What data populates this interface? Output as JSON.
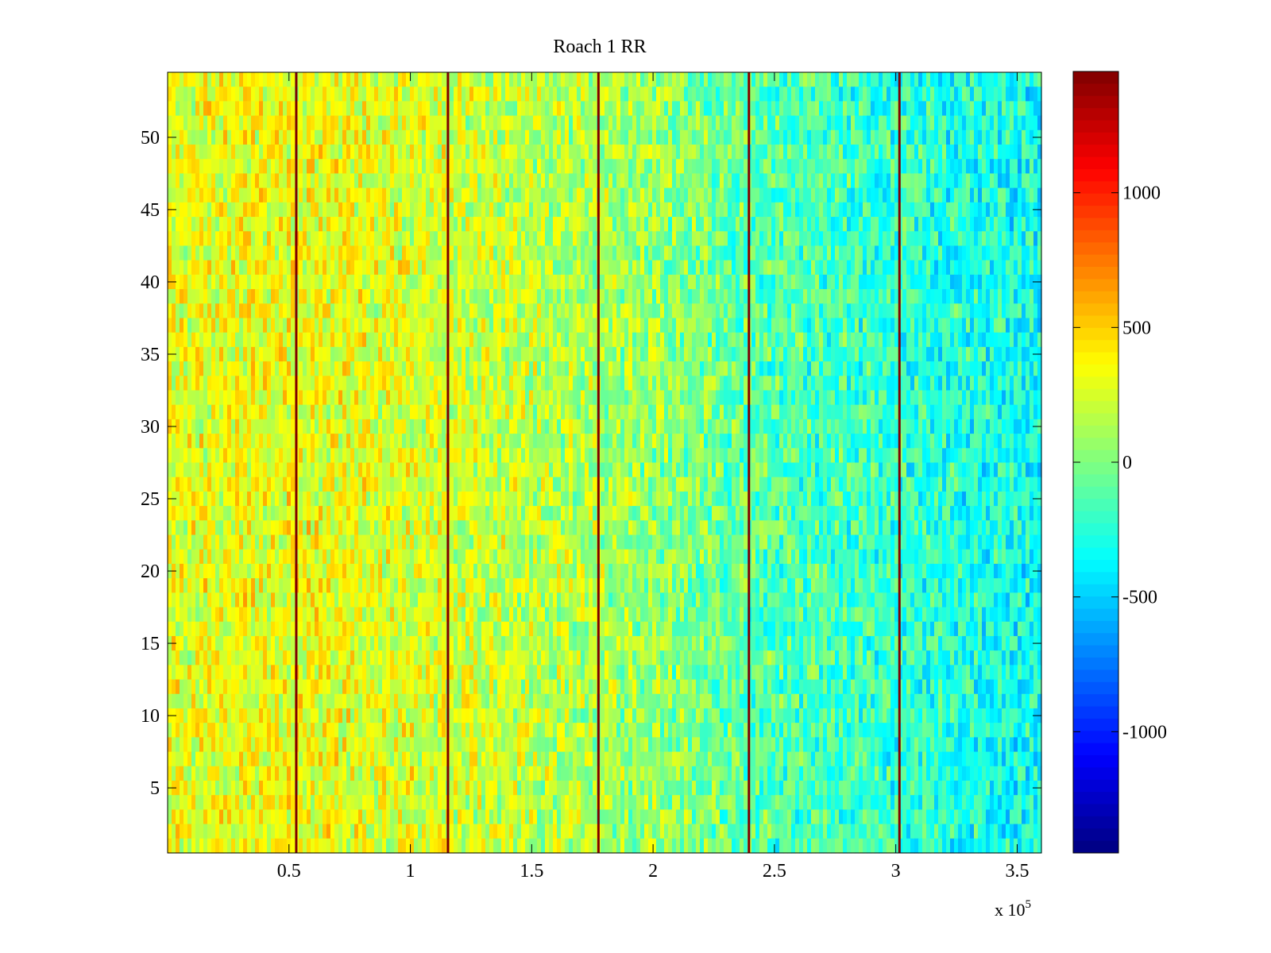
{
  "chart_data": {
    "type": "heatmap",
    "title": "Roach 1 RR",
    "xlabel": "",
    "ylabel": "",
    "x_multiplier_label": "x 10",
    "x_multiplier_exponent": "5",
    "xlim": [
      0,
      3.6
    ],
    "ylim": [
      0.5,
      54.5
    ],
    "x_ticks": [
      0.5,
      1,
      1.5,
      2,
      2.5,
      3,
      3.5
    ],
    "x_tick_labels": [
      "0.5",
      "1",
      "1.5",
      "2",
      "2.5",
      "3",
      "3.5"
    ],
    "y_ticks": [
      5,
      10,
      15,
      20,
      25,
      30,
      35,
      40,
      45,
      50
    ],
    "y_tick_labels": [
      "5",
      "10",
      "15",
      "20",
      "25",
      "30",
      "35",
      "40",
      "45",
      "50"
    ],
    "rows": 54,
    "colormap": "jet",
    "clim": [
      -1450,
      1450
    ],
    "colorbar_ticks": [
      1000,
      500,
      0,
      -500,
      -1000
    ],
    "colorbar_tick_labels": [
      "1000",
      "500",
      "0",
      "-500",
      "-1000"
    ],
    "vertical_lines_x": [
      0.53,
      1.155,
      1.775,
      2.395,
      3.015
    ],
    "mean_trend": {
      "x": [
        0,
        0.5,
        1.0,
        1.5,
        2.0,
        2.5,
        3.0,
        3.6
      ],
      "value": [
        280,
        330,
        260,
        180,
        60,
        -130,
        -220,
        -330
      ]
    }
  }
}
